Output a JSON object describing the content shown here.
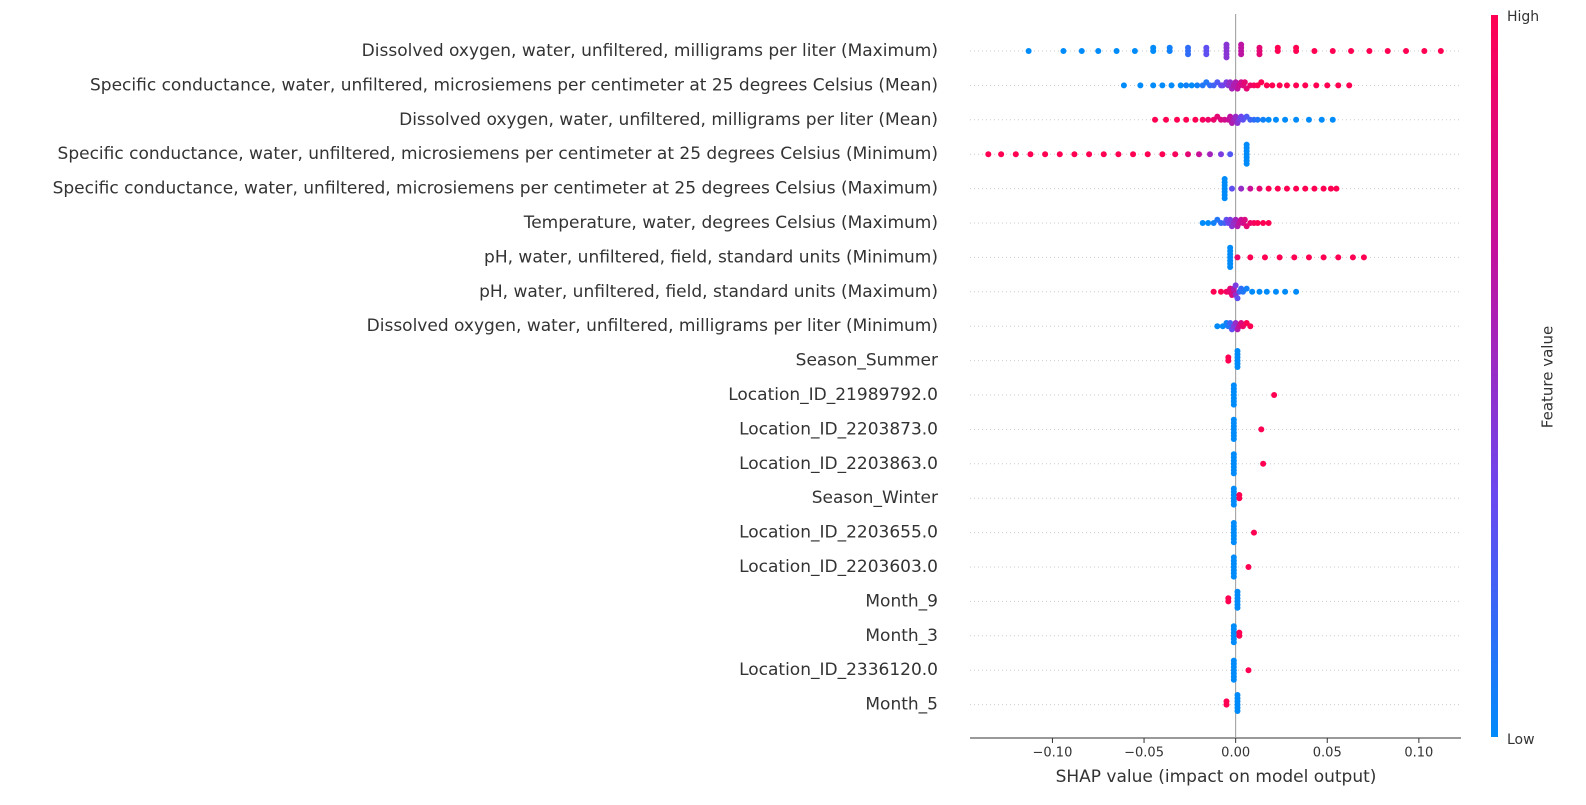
{
  "chart_data": {
    "type": "beeswarm",
    "xlabel": "SHAP value (impact on model output)",
    "colorbar_label": "Feature value",
    "colorbar_high": "High",
    "colorbar_low": "Low",
    "colormap": [
      "#008bfb",
      "#6a48f0",
      "#c2119e",
      "#ff0052"
    ],
    "xlim": [
      -0.145,
      0.123
    ],
    "xticks": [
      {
        "value": -0.1,
        "label": "−0.10"
      },
      {
        "value": -0.05,
        "label": "−0.05"
      },
      {
        "value": 0,
        "label": "0.00"
      },
      {
        "value": 0.05,
        "label": "0.05"
      },
      {
        "value": 0.1,
        "label": "0.10"
      }
    ],
    "grid": true,
    "rows": [
      {
        "name": "Dissolved oxygen, water, unfiltered, milligrams per liter (Maximum)",
        "values": [
          -0.113,
          -0.094,
          -0.084,
          -0.075,
          -0.065,
          -0.055,
          -0.045,
          -0.045,
          -0.036,
          -0.036,
          -0.026,
          -0.026,
          -0.026,
          -0.016,
          -0.016,
          -0.016,
          -0.005,
          -0.005,
          -0.005,
          -0.005,
          -0.005,
          0.003,
          0.003,
          0.003,
          0.003,
          0.013,
          0.013,
          0.013,
          0.023,
          0.023,
          0.033,
          0.033,
          0.043,
          0.053,
          0.063,
          0.073,
          0.083,
          0.093,
          0.103,
          0.112
        ],
        "feature_values": [
          0,
          0,
          0,
          0,
          0,
          0,
          0,
          0,
          0.05,
          0.05,
          0.15,
          0.15,
          0.15,
          0.3,
          0.3,
          0.3,
          0.45,
          0.45,
          0.45,
          0.45,
          0.45,
          0.65,
          0.65,
          0.65,
          0.65,
          0.85,
          0.85,
          0.85,
          1,
          1,
          1,
          1,
          1,
          1,
          1,
          1,
          1,
          1,
          1,
          1
        ]
      },
      {
        "name": "Specific conductance, water, unfiltered, microsiemens per centimeter at 25 degrees Celsius (Mean)",
        "values": [
          -0.061,
          -0.052,
          -0.045,
          -0.04,
          -0.035,
          -0.03,
          -0.027,
          -0.024,
          -0.021,
          -0.018,
          -0.016,
          -0.014,
          -0.012,
          -0.01,
          -0.008,
          -0.007,
          -0.005,
          -0.004,
          -0.003,
          -0.002,
          -0.001,
          0,
          0.001,
          0.002,
          0.003,
          0.004,
          0.005,
          0.006,
          0.008,
          0.01,
          0.012,
          0.014,
          0.017,
          0.02,
          0.024,
          0.028,
          0.033,
          0.038,
          0.044,
          0.05,
          0.056,
          0.062
        ],
        "feature_values": [
          0,
          0,
          0,
          0,
          0,
          0,
          0.05,
          0,
          0.05,
          0.1,
          0.1,
          0.15,
          0.2,
          0.25,
          0.3,
          0.35,
          0.4,
          0.45,
          0.5,
          0.55,
          0.6,
          0.6,
          0.65,
          0.7,
          0.75,
          0.8,
          0.85,
          0.85,
          0.9,
          0.95,
          1,
          1,
          1,
          1,
          1,
          1,
          1,
          1,
          1,
          1,
          1,
          1
        ]
      },
      {
        "name": "Dissolved oxygen, water, unfiltered, milligrams per liter (Mean)",
        "values": [
          -0.044,
          -0.038,
          -0.032,
          -0.027,
          -0.022,
          -0.018,
          -0.015,
          -0.012,
          -0.01,
          -0.008,
          -0.006,
          -0.004,
          -0.003,
          -0.002,
          -0.001,
          0,
          0.001,
          0.002,
          0.003,
          0.004,
          0.006,
          0.008,
          0.01,
          0.012,
          0.015,
          0.018,
          0.022,
          0.027,
          0.033,
          0.04,
          0.047,
          0.053
        ],
        "feature_values": [
          1,
          1,
          1,
          1,
          1,
          0.95,
          0.9,
          0.9,
          0.85,
          0.8,
          0.75,
          0.7,
          0.65,
          0.6,
          0.55,
          0.5,
          0.45,
          0.4,
          0.35,
          0.3,
          0.25,
          0.2,
          0.15,
          0.1,
          0.05,
          0,
          0,
          0,
          0,
          0,
          0,
          0
        ]
      },
      {
        "name": "Specific conductance, water, unfiltered, microsiemens per centimeter at 25 degrees Celsius (Minimum)",
        "values": [
          -0.135,
          -0.128,
          -0.12,
          -0.112,
          -0.104,
          -0.096,
          -0.088,
          -0.08,
          -0.072,
          -0.064,
          -0.056,
          -0.048,
          -0.04,
          -0.033,
          -0.026,
          -0.02,
          -0.014,
          -0.008,
          -0.003,
          0.006,
          0.006,
          0.006,
          0.006,
          0.006,
          0.006,
          0.006
        ],
        "feature_values": [
          1,
          1,
          1,
          1,
          1,
          1,
          1,
          1,
          1,
          1,
          1,
          1,
          1,
          0.95,
          0.85,
          0.7,
          0.55,
          0.4,
          0.25,
          0,
          0,
          0,
          0,
          0,
          0,
          0
        ]
      },
      {
        "name": "Specific conductance, water, unfiltered, microsiemens per centimeter at 25 degrees Celsius (Maximum)",
        "values": [
          -0.006,
          -0.006,
          -0.006,
          -0.006,
          -0.006,
          -0.006,
          -0.006,
          -0.002,
          0.003,
          0.008,
          0.013,
          0.018,
          0.023,
          0.028,
          0.033,
          0.038,
          0.043,
          0.048,
          0.052,
          0.055
        ],
        "feature_values": [
          0,
          0,
          0,
          0,
          0,
          0,
          0,
          0.3,
          0.5,
          0.7,
          0.85,
          1,
          1,
          1,
          1,
          1,
          1,
          1,
          1,
          1
        ]
      },
      {
        "name": "Temperature, water, degrees Celsius (Maximum)",
        "values": [
          -0.018,
          -0.015,
          -0.012,
          -0.01,
          -0.008,
          -0.006,
          -0.005,
          -0.004,
          -0.003,
          -0.002,
          -0.001,
          0,
          0.001,
          0.002,
          0.003,
          0.004,
          0.005,
          0.006,
          0.008,
          0.01,
          0.012,
          0.015,
          0.018
        ],
        "feature_values": [
          0,
          0,
          0.05,
          0.1,
          0.15,
          0.2,
          0.3,
          0.35,
          0.4,
          0.45,
          0.5,
          0.55,
          0.6,
          0.65,
          0.7,
          0.75,
          0.8,
          0.85,
          0.9,
          0.95,
          1,
          1,
          1
        ]
      },
      {
        "name": "pH, water, unfiltered, field, standard units (Minimum)",
        "values": [
          -0.003,
          -0.003,
          -0.003,
          -0.003,
          -0.003,
          -0.003,
          -0.003,
          0.001,
          0.008,
          0.016,
          0.024,
          0.032,
          0.04,
          0.048,
          0.056,
          0.064,
          0.07
        ],
        "feature_values": [
          0,
          0,
          0,
          0,
          0,
          0,
          0,
          0.9,
          1,
          1,
          1,
          1,
          1,
          1,
          1,
          1,
          1
        ]
      },
      {
        "name": "pH, water, unfiltered, field, standard units (Maximum)",
        "values": [
          -0.012,
          -0.008,
          -0.005,
          -0.004,
          -0.003,
          -0.002,
          -0.001,
          -0.001,
          0,
          0,
          0.001,
          0.002,
          0.003,
          0.004,
          0.006,
          0.009,
          0.013,
          0.017,
          0.022,
          0.027,
          0.033
        ],
        "feature_values": [
          1,
          1,
          0.95,
          0.9,
          0.85,
          0.8,
          0.7,
          0.6,
          0.5,
          0.4,
          0.3,
          0.2,
          0.15,
          0.1,
          0.05,
          0,
          0,
          0,
          0,
          0,
          0
        ]
      },
      {
        "name": "Dissolved oxygen, water, unfiltered, milligrams per liter (Minimum)",
        "values": [
          -0.01,
          -0.007,
          -0.005,
          -0.004,
          -0.003,
          -0.002,
          -0.001,
          0,
          0.001,
          0.002,
          0.003,
          0.004,
          0.006,
          0.008
        ],
        "feature_values": [
          0,
          0,
          0.05,
          0.1,
          0.2,
          0.3,
          0.4,
          0.5,
          0.6,
          0.7,
          0.8,
          0.9,
          1,
          1
        ]
      },
      {
        "name": "Season_Summer",
        "values": [
          -0.004,
          -0.004,
          0.001,
          0.001,
          0.001,
          0.001,
          0.001,
          0.001
        ],
        "feature_values": [
          1,
          1,
          0,
          0,
          0,
          0,
          0,
          0
        ]
      },
      {
        "name": "Location_ID_21989792.0",
        "values": [
          -0.001,
          -0.001,
          -0.001,
          -0.001,
          -0.001,
          -0.001,
          -0.001,
          0.021
        ],
        "feature_values": [
          0,
          0,
          0,
          0,
          0,
          0,
          0,
          1
        ]
      },
      {
        "name": "Location_ID_2203873.0",
        "values": [
          -0.001,
          -0.001,
          -0.001,
          -0.001,
          -0.001,
          -0.001,
          -0.001,
          0.014
        ],
        "feature_values": [
          0,
          0,
          0,
          0,
          0,
          0,
          0,
          1
        ]
      },
      {
        "name": "Location_ID_2203863.0",
        "values": [
          -0.001,
          -0.001,
          -0.001,
          -0.001,
          -0.001,
          -0.001,
          -0.001,
          0.015
        ],
        "feature_values": [
          0,
          0,
          0,
          0,
          0,
          0,
          0,
          1
        ]
      },
      {
        "name": "Season_Winter",
        "values": [
          -0.001,
          -0.001,
          -0.001,
          -0.001,
          -0.001,
          -0.001,
          0.002,
          0.002
        ],
        "feature_values": [
          0,
          0,
          0,
          0,
          0,
          0,
          1,
          1
        ]
      },
      {
        "name": "Location_ID_2203655.0",
        "values": [
          -0.001,
          -0.001,
          -0.001,
          -0.001,
          -0.001,
          -0.001,
          -0.001,
          0.01
        ],
        "feature_values": [
          0,
          0,
          0,
          0,
          0,
          0,
          0,
          1
        ]
      },
      {
        "name": "Location_ID_2203603.0",
        "values": [
          -0.001,
          -0.001,
          -0.001,
          -0.001,
          -0.001,
          -0.001,
          -0.001,
          0.007
        ],
        "feature_values": [
          0,
          0,
          0,
          0,
          0,
          0,
          0,
          1
        ]
      },
      {
        "name": "Month_9",
        "values": [
          -0.004,
          -0.004,
          0.001,
          0.001,
          0.001,
          0.001,
          0.001,
          0.001
        ],
        "feature_values": [
          1,
          1,
          0,
          0,
          0,
          0,
          0,
          0
        ]
      },
      {
        "name": "Month_3",
        "values": [
          -0.001,
          -0.001,
          -0.001,
          -0.001,
          -0.001,
          -0.001,
          0.002,
          0.002
        ],
        "feature_values": [
          0,
          0,
          0,
          0,
          0,
          0,
          1,
          1
        ]
      },
      {
        "name": "Location_ID_2336120.0",
        "values": [
          -0.001,
          -0.001,
          -0.001,
          -0.001,
          -0.001,
          -0.001,
          -0.001,
          0.007
        ],
        "feature_values": [
          0,
          0,
          0,
          0,
          0,
          0,
          0,
          1
        ]
      },
      {
        "name": "Month_5",
        "values": [
          -0.005,
          -0.005,
          0.001,
          0.001,
          0.001,
          0.001,
          0.001,
          0.001
        ],
        "feature_values": [
          1,
          1,
          0,
          0,
          0,
          0,
          0,
          0
        ]
      }
    ]
  }
}
